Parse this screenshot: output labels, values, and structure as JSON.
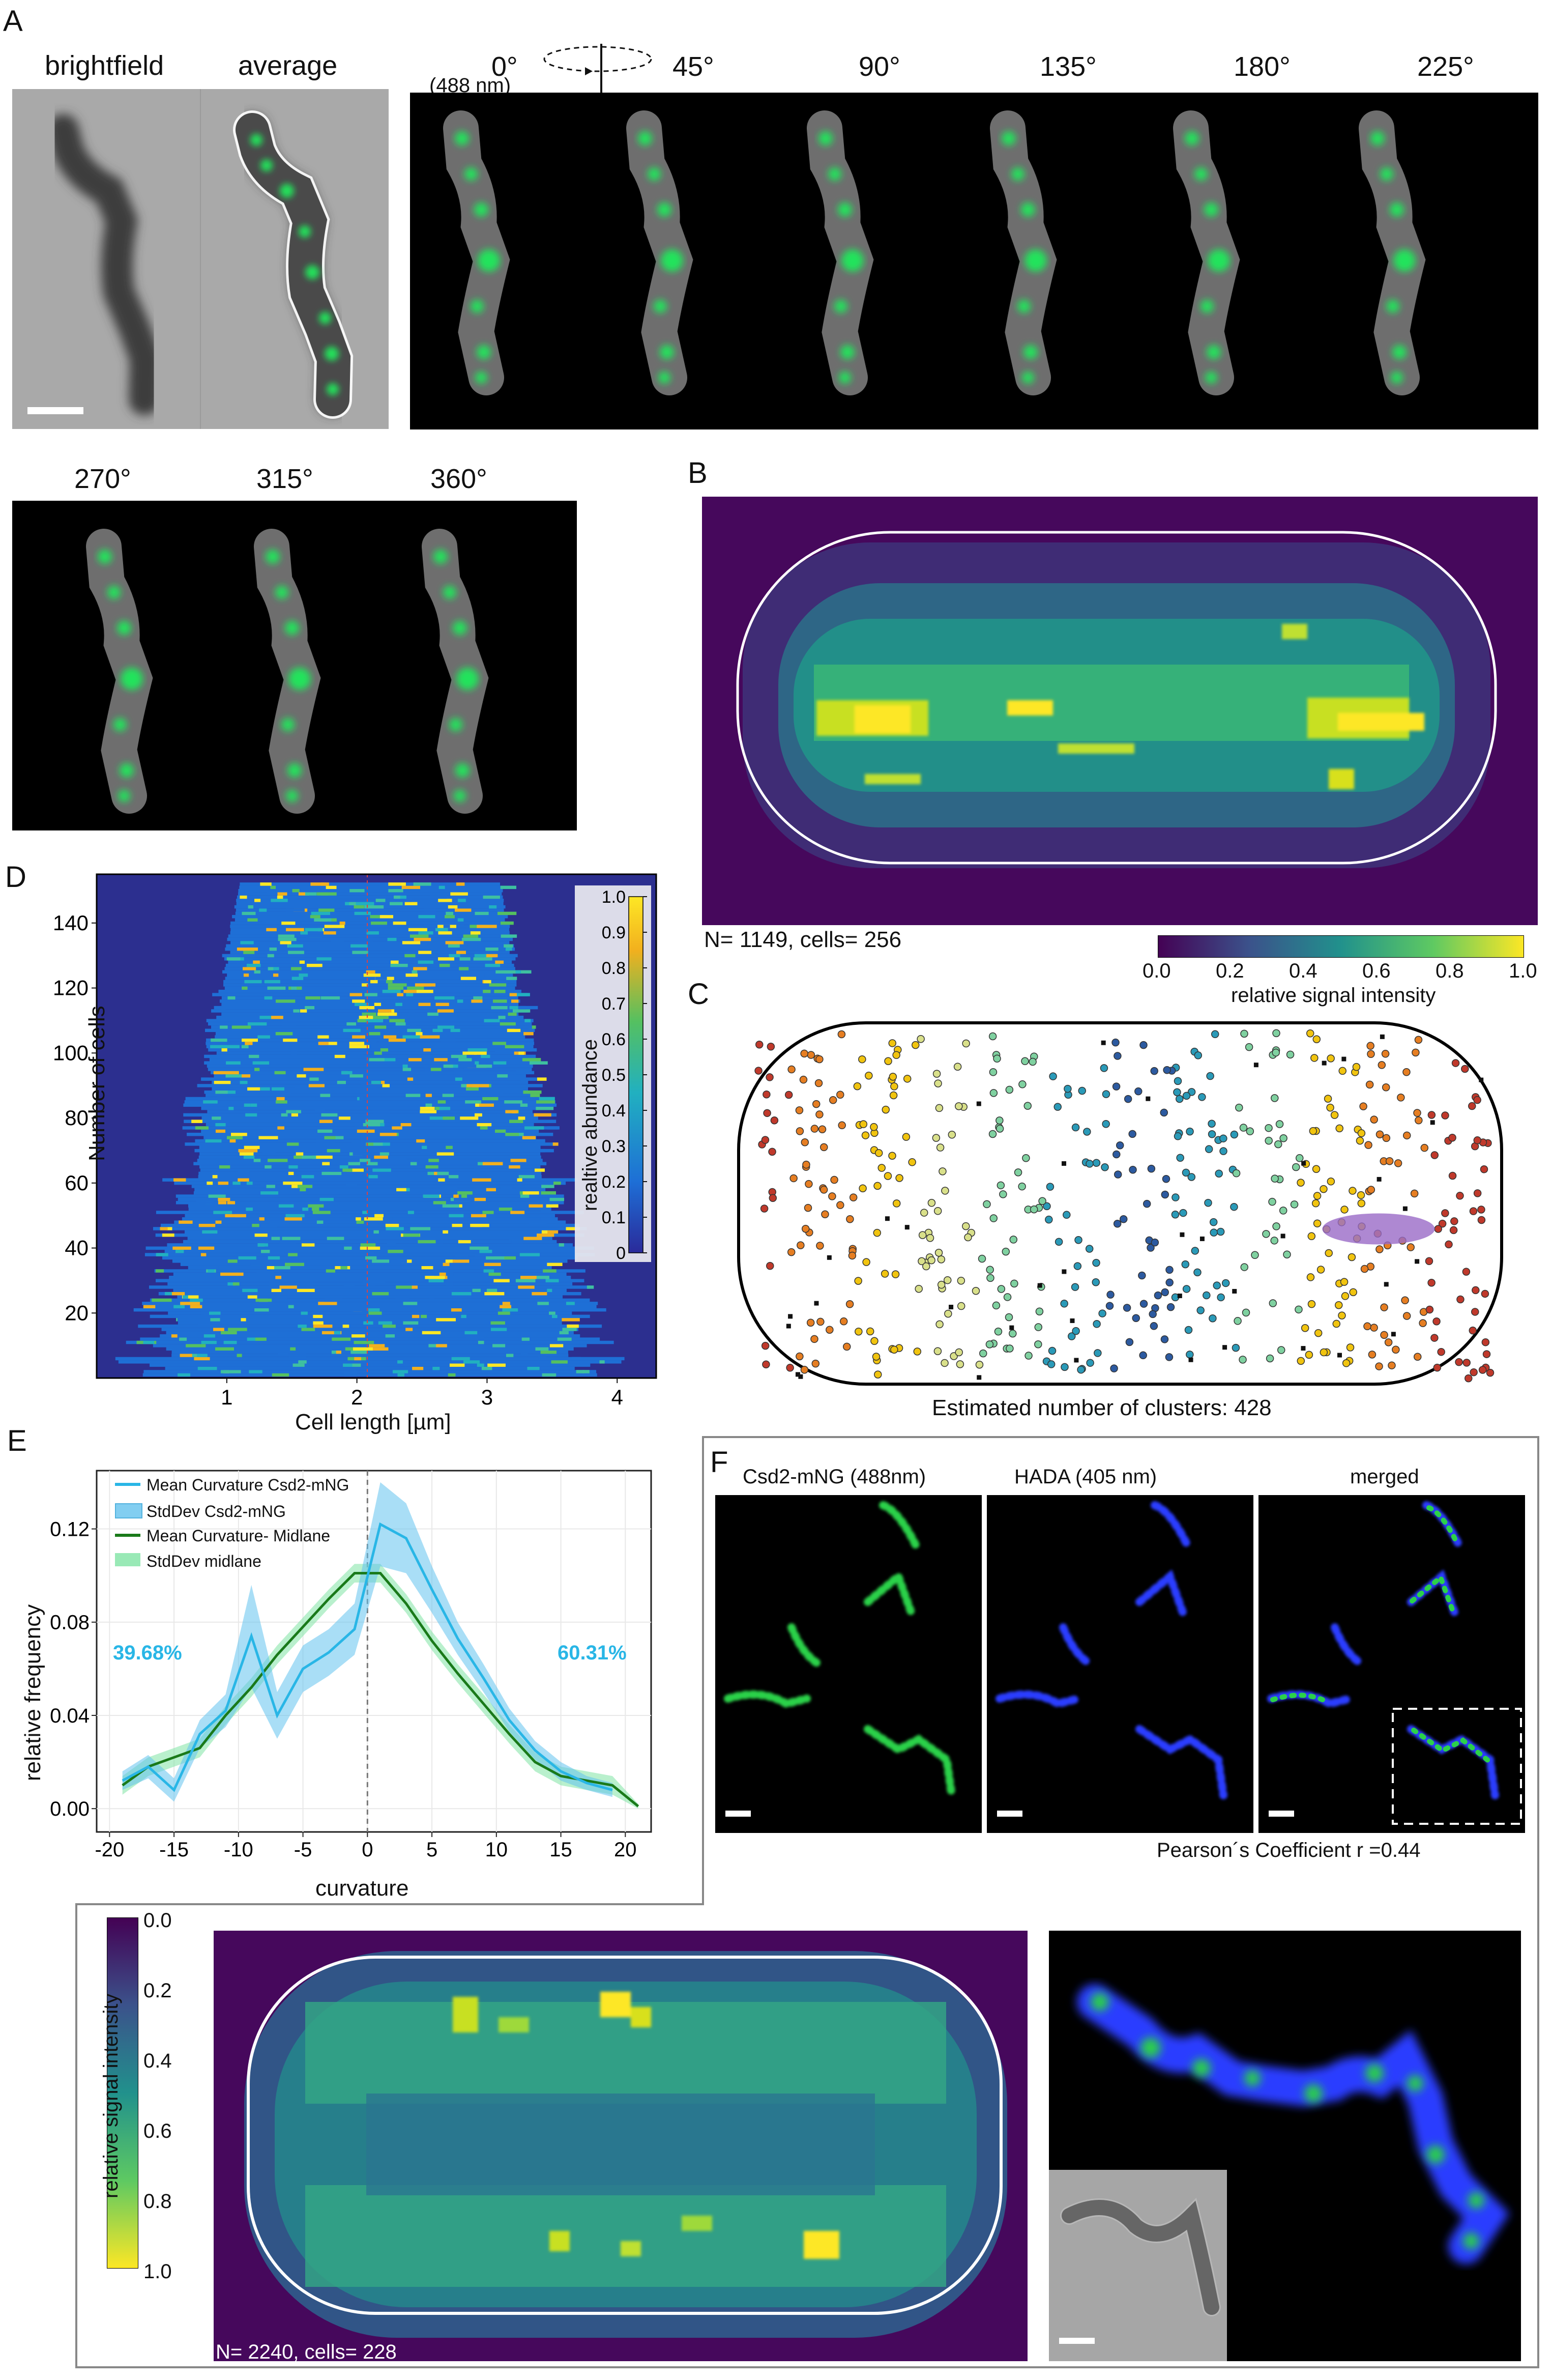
{
  "panelA": {
    "label": "A",
    "brightfield": "brightfield",
    "average": "average",
    "laser": "(488 nm)",
    "angles": [
      "0°",
      "45°",
      "90°",
      "135°",
      "180°",
      "225°"
    ],
    "angles2": [
      "270°",
      "315°",
      "360°"
    ]
  },
  "panelB": {
    "label": "B",
    "stats": "N= 1149, cells= 256",
    "colorbar_label": "relative signal intensity",
    "colorbar_ticks": [
      "0.0",
      "0.2",
      "0.4",
      "0.6",
      "0.8",
      "1.0"
    ]
  },
  "panelC": {
    "label": "C",
    "caption": "Estimated number of clusters: 428"
  },
  "panelD": {
    "label": "D",
    "xlabel": "Cell length [µm]",
    "ylabel": "Number of cells",
    "xticks": [
      "1",
      "2",
      "3",
      "4"
    ],
    "yticks": [
      "20",
      "40",
      "60",
      "80",
      "100",
      "120",
      "140"
    ],
    "colorbar_label": "realtive abundance",
    "colorbar_ticks": [
      "0",
      "0.1",
      "0.2",
      "0.3",
      "0.4",
      "0.5",
      "0.6",
      "0.7",
      "0.8",
      "0.9",
      "1.0"
    ]
  },
  "panelE": {
    "label": "E",
    "ylabel": "relative frequency",
    "xlabel": "curvature",
    "left_pct": "39.68%",
    "right_pct": "60.31%",
    "legend": [
      "Mean Curvature Csd2-mNG",
      "StdDev Csd2-mNG",
      "Mean Curvature- Midlane",
      "StdDev midlane"
    ]
  },
  "panelF": {
    "label": "F",
    "ch1": "Csd2-mNG (488nm)",
    "ch2": "HADA (405 nm)",
    "ch3": "merged",
    "pearson": "Pearson´s Coefficient r =0.44",
    "heat_stats": "N= 2240, cells= 228",
    "colorbar_label": "relative signal intensity",
    "colorbar_ticks": [
      "0.0",
      "0.2",
      "0.4",
      "0.6",
      "0.8",
      "1.0"
    ]
  },
  "colors": {
    "viridis_dark": "#440154",
    "viridis_mid": "#21918c",
    "viridis_yellow": "#fde725",
    "csd2_blue": "#29b6e6",
    "midline_green": "#1a7a1a",
    "gfp": "#22e05a",
    "hada": "#2a3cff"
  },
  "chart_data": [
    {
      "type": "line",
      "title": "",
      "xlabel": "curvature",
      "ylabel": "relative frequency",
      "xlim": [
        -21,
        22
      ],
      "ylim": [
        -0.01,
        0.145
      ],
      "x": [
        -19,
        -17,
        -15,
        -13,
        -11,
        -9,
        -7,
        -5,
        -3,
        -1,
        1,
        3,
        5,
        7,
        9,
        11,
        13,
        15,
        17,
        19,
        21
      ],
      "x_ticks": [
        -20,
        -15,
        -10,
        -5,
        0,
        5,
        10,
        15,
        20
      ],
      "y_ticks": [
        0.0,
        0.04,
        0.08,
        0.12
      ],
      "series": [
        {
          "name": "Mean Curvature Csd2-mNG",
          "values": [
            0.012,
            0.018,
            0.008,
            0.032,
            0.042,
            0.074,
            0.04,
            0.06,
            0.067,
            0.077,
            0.122,
            0.116,
            0.094,
            0.073,
            0.056,
            0.038,
            0.025,
            0.016,
            0.011,
            0.008,
            null
          ]
        },
        {
          "name": "StdDev Csd2-mNG",
          "values": [
            0.004,
            0.005,
            0.005,
            0.006,
            0.007,
            0.022,
            0.01,
            0.01,
            0.01,
            0.011,
            0.018,
            0.015,
            0.01,
            0.007,
            0.006,
            0.005,
            0.004,
            0.004,
            0.003,
            0.003,
            null
          ]
        },
        {
          "name": "Mean Curvature- Midlane",
          "values": [
            0.01,
            0.018,
            0.022,
            0.026,
            0.04,
            0.052,
            0.066,
            0.078,
            0.09,
            0.101,
            0.101,
            0.088,
            0.072,
            0.058,
            0.045,
            0.032,
            0.02,
            0.014,
            0.012,
            0.01,
            0.001
          ]
        },
        {
          "name": "StdDev midlane",
          "values": [
            0.004,
            0.004,
            0.004,
            0.004,
            0.004,
            0.004,
            0.004,
            0.004,
            0.004,
            0.004,
            0.004,
            0.004,
            0.004,
            0.004,
            0.004,
            0.004,
            0.004,
            0.004,
            0.004,
            0.004,
            0.001
          ]
        }
      ],
      "annotations": [
        "39.68%",
        "60.31%"
      ]
    },
    {
      "type": "heatmap",
      "title": "",
      "xlabel": "Cell length [µm]",
      "ylabel": "Number of cells",
      "xlim": [
        0,
        4.3
      ],
      "ylim": [
        0,
        155
      ],
      "x_ticks": [
        1,
        2,
        3,
        4
      ],
      "y_ticks": [
        20,
        40,
        60,
        80,
        100,
        120,
        140
      ],
      "colorbar": {
        "label": "realtive abundance",
        "range": [
          0,
          1
        ]
      }
    },
    {
      "type": "heatmap",
      "title": "",
      "annotations": [
        "N= 1149, cells= 256"
      ],
      "colorbar": {
        "label": "relative signal intensity",
        "range": [
          0,
          1
        ]
      }
    },
    {
      "type": "scatter",
      "title": "",
      "annotations": [
        "Estimated number of clusters: 428"
      ]
    },
    {
      "type": "heatmap",
      "title": "",
      "annotations": [
        "N= 2240, cells= 228"
      ],
      "colorbar": {
        "label": "relative signal intensity",
        "range": [
          0,
          1
        ]
      }
    }
  ]
}
